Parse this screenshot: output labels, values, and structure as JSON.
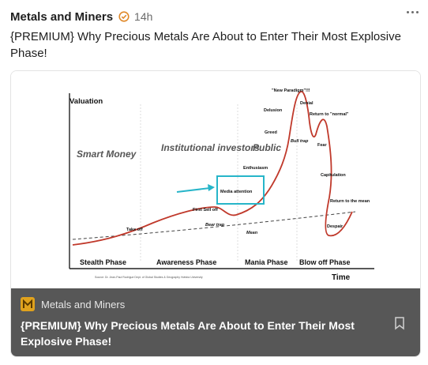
{
  "post": {
    "author": "Metals and Miners",
    "time": "14h",
    "text": "{PREMIUM} Why Precious Metals Are About to Enter Their Most Explosive Phase!"
  },
  "card": {
    "publisher": "Metals and Miners",
    "title": "{PREMIUM} Why Precious Metals Are About to Enter Their Most Explosive Phase!",
    "icons": {
      "publisher": "metals-miners-logo",
      "bookmark": "bookmark-icon",
      "more": "more-icon"
    }
  },
  "colors": {
    "curve": "#c0392b",
    "highlight": "#27b5c9",
    "footer": "#575757"
  },
  "chart": {
    "ylabel": "Valuation",
    "xlabel": "Time",
    "groups": [
      "Smart Money",
      "Institutional investors",
      "Public"
    ],
    "phases": [
      "Stealth Phase",
      "Awareness Phase",
      "Mania Phase",
      "Blow off Phase"
    ],
    "annotations": {
      "new_paradigm": "\"New Paradigm\"!!!",
      "denial": "Denial",
      "delusion": "Delusion",
      "return_normal": "Return to \"normal\"",
      "greed": "Greed",
      "bull_trap": "Bull trap",
      "fear": "Fear",
      "enthusiasm": "Enthusiasm",
      "capitulation": "Capitulation",
      "media_attention": "Media attention",
      "first_sell_off": "First Sell off",
      "bear_trap": "Bear trap",
      "take_off": "Take off",
      "mean": "Mean",
      "return_mean": "Return to the mean",
      "despair": "Despair"
    },
    "source": "Source: Dr. Jean-Paul Rodrigue Dept. of Global Studies & Geography Hofstra University"
  }
}
